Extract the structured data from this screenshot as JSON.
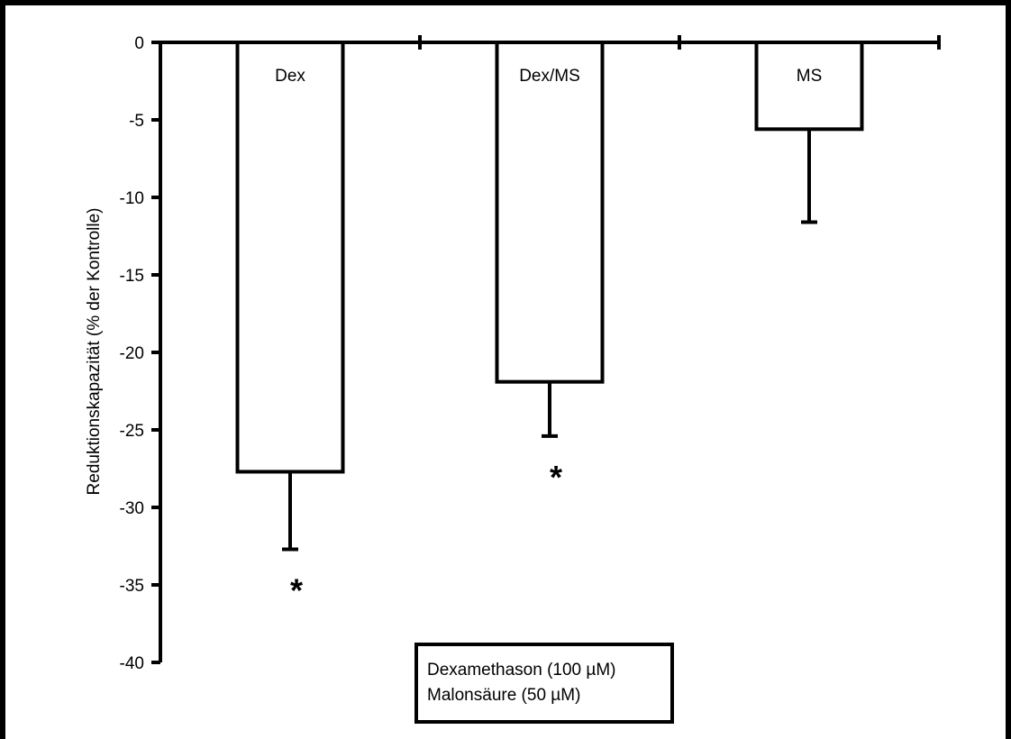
{
  "chart_data": {
    "type": "bar",
    "categories": [
      "Dex",
      "Dex/MS",
      "MS"
    ],
    "values": [
      -27.7,
      -21.9,
      -5.6
    ],
    "error_values": [
      -32.7,
      -25.4,
      -11.6
    ],
    "significant": [
      true,
      true,
      false
    ],
    "significance_marker": "*",
    "ylabel": "Reduktionskapazität (% der Kontrolle)",
    "xlabel": "",
    "ylim": [
      -40,
      0
    ],
    "yticks": [
      "0",
      "-5",
      "-10",
      "-15",
      "-20",
      "-25",
      "-30",
      "-35",
      "-40"
    ],
    "ytick_values": [
      0,
      -5,
      -10,
      -15,
      -20,
      -25,
      -30,
      -35,
      -40
    ],
    "grid": false,
    "legend_box": {
      "lines": [
        "Dexamethason (100 µM)",
        "Malonsäure (50 µM)"
      ],
      "placement": "bottom-center"
    },
    "colors": {
      "bar_fill": "#ffffff",
      "stroke": "#000000"
    }
  }
}
